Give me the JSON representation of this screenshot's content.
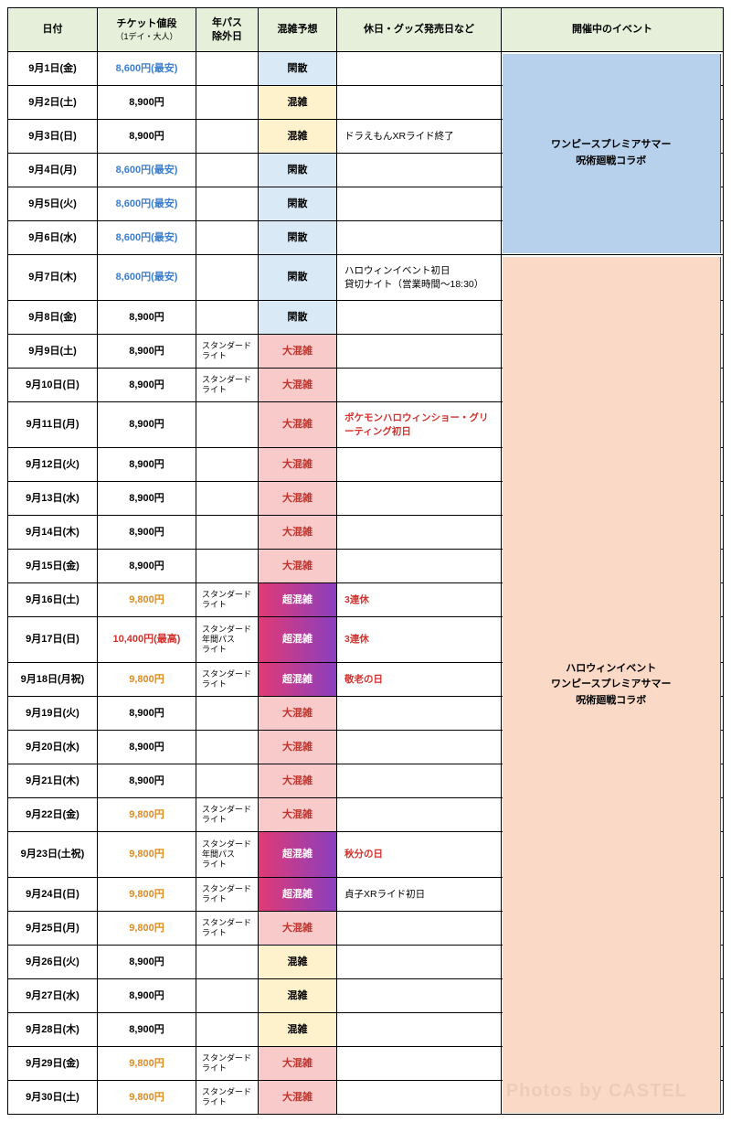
{
  "headers": {
    "date": "日付",
    "price": "チケット値段",
    "price_sub": "（1デイ・大人）",
    "pass": "年パス\n除外日",
    "crowd": "混雑予想",
    "note": "休日・グッズ発売日など",
    "event": "開催中のイベント"
  },
  "crowd_labels": {
    "kansan": "閑散",
    "konzatsu": "混雑",
    "daikonzatsu": "大混雑",
    "choukonzatsu": "超混雑"
  },
  "crowd_colors": {
    "kansan": "c-blue",
    "konzatsu": "c-yellow",
    "daikonzatsu": "c-pink",
    "choukonzatsu": "c-red"
  },
  "price_colors": {
    "lowest": "p-blue",
    "normal": "",
    "high": "p-orange",
    "highest": "p-red"
  },
  "events": [
    {
      "label": "ワンピースプレミアサマー\n呪術廻戦コラボ",
      "class": "ev1",
      "row_start": 0,
      "row_end": 6
    },
    {
      "label": "ハロウィンイベント\nワンピースプレミアサマー\n呪術廻戦コラボ",
      "class": "ev2",
      "row_start": 6,
      "row_end": 30
    }
  ],
  "rows": [
    {
      "date": "9月1日(金)",
      "price": "8,600円(最安)",
      "price_c": "lowest",
      "pass": "",
      "crowd": "kansan",
      "note": "",
      "note_c": ""
    },
    {
      "date": "9月2日(土)",
      "price": "8,900円",
      "price_c": "normal",
      "pass": "",
      "crowd": "konzatsu",
      "note": "",
      "note_c": ""
    },
    {
      "date": "9月3日(日)",
      "price": "8,900円",
      "price_c": "normal",
      "pass": "",
      "crowd": "konzatsu",
      "note": "ドラえもんXRライド終了",
      "note_c": ""
    },
    {
      "date": "9月4日(月)",
      "price": "8,600円(最安)",
      "price_c": "lowest",
      "pass": "",
      "crowd": "kansan",
      "note": "",
      "note_c": ""
    },
    {
      "date": "9月5日(火)",
      "price": "8,600円(最安)",
      "price_c": "lowest",
      "pass": "",
      "crowd": "kansan",
      "note": "",
      "note_c": ""
    },
    {
      "date": "9月6日(水)",
      "price": "8,600円(最安)",
      "price_c": "lowest",
      "pass": "",
      "crowd": "kansan",
      "note": "",
      "note_c": ""
    },
    {
      "date": "9月7日(木)",
      "price": "8,600円(最安)",
      "price_c": "lowest",
      "pass": "",
      "crowd": "kansan",
      "note": "ハロウィンイベント初日\n貸切ナイト（営業時間〜18:30）",
      "note_c": "",
      "tall": true
    },
    {
      "date": "9月8日(金)",
      "price": "8,900円",
      "price_c": "normal",
      "pass": "",
      "crowd": "kansan",
      "note": "",
      "note_c": ""
    },
    {
      "date": "9月9日(土)",
      "price": "8,900円",
      "price_c": "normal",
      "pass": "スタンダード\nライト",
      "crowd": "daikonzatsu",
      "note": "",
      "note_c": ""
    },
    {
      "date": "9月10日(日)",
      "price": "8,900円",
      "price_c": "normal",
      "pass": "スタンダード\nライト",
      "crowd": "daikonzatsu",
      "note": "",
      "note_c": ""
    },
    {
      "date": "9月11日(月)",
      "price": "8,900円",
      "price_c": "normal",
      "pass": "",
      "crowd": "daikonzatsu",
      "note": "ポケモンハロウィンショー・グリーティング初日",
      "note_c": "n-red",
      "tall": true
    },
    {
      "date": "9月12日(火)",
      "price": "8,900円",
      "price_c": "normal",
      "pass": "",
      "crowd": "daikonzatsu",
      "note": "",
      "note_c": ""
    },
    {
      "date": "9月13日(水)",
      "price": "8,900円",
      "price_c": "normal",
      "pass": "",
      "crowd": "daikonzatsu",
      "note": "",
      "note_c": ""
    },
    {
      "date": "9月14日(木)",
      "price": "8,900円",
      "price_c": "normal",
      "pass": "",
      "crowd": "daikonzatsu",
      "note": "",
      "note_c": ""
    },
    {
      "date": "9月15日(金)",
      "price": "8,900円",
      "price_c": "normal",
      "pass": "",
      "crowd": "daikonzatsu",
      "note": "",
      "note_c": ""
    },
    {
      "date": "9月16日(土)",
      "price": "9,800円",
      "price_c": "high",
      "pass": "スタンダード\nライト",
      "crowd": "choukonzatsu",
      "note": "3連休",
      "note_c": "n-red"
    },
    {
      "date": "9月17日(日)",
      "price": "10,400円(最高)",
      "price_c": "highest",
      "pass": "スタンダード\n年間パス\nライト",
      "crowd": "choukonzatsu",
      "note": "3連休",
      "note_c": "n-red",
      "tall": true
    },
    {
      "date": "9月18日(月祝)",
      "price": "9,800円",
      "price_c": "high",
      "pass": "スタンダード\nライト",
      "crowd": "choukonzatsu",
      "note": "敬老の日",
      "note_c": "n-red"
    },
    {
      "date": "9月19日(火)",
      "price": "8,900円",
      "price_c": "normal",
      "pass": "",
      "crowd": "daikonzatsu",
      "note": "",
      "note_c": ""
    },
    {
      "date": "9月20日(水)",
      "price": "8,900円",
      "price_c": "normal",
      "pass": "",
      "crowd": "daikonzatsu",
      "note": "",
      "note_c": ""
    },
    {
      "date": "9月21日(木)",
      "price": "8,900円",
      "price_c": "normal",
      "pass": "",
      "crowd": "daikonzatsu",
      "note": "",
      "note_c": ""
    },
    {
      "date": "9月22日(金)",
      "price": "9,800円",
      "price_c": "high",
      "pass": "スタンダード\nライト",
      "crowd": "daikonzatsu",
      "note": "",
      "note_c": ""
    },
    {
      "date": "9月23日(土祝)",
      "price": "9,800円",
      "price_c": "high",
      "pass": "スタンダード\n年間パス\nライト",
      "crowd": "choukonzatsu",
      "note": "秋分の日",
      "note_c": "n-red",
      "tall": true
    },
    {
      "date": "9月24日(日)",
      "price": "9,800円",
      "price_c": "high",
      "pass": "スタンダード\nライト",
      "crowd": "choukonzatsu",
      "note": "貞子XRライド初日",
      "note_c": ""
    },
    {
      "date": "9月25日(月)",
      "price": "9,800円",
      "price_c": "high",
      "pass": "スタンダード\nライト",
      "crowd": "daikonzatsu",
      "note": "",
      "note_c": ""
    },
    {
      "date": "9月26日(火)",
      "price": "8,900円",
      "price_c": "normal",
      "pass": "",
      "crowd": "konzatsu",
      "note": "",
      "note_c": ""
    },
    {
      "date": "9月27日(水)",
      "price": "8,900円",
      "price_c": "normal",
      "pass": "",
      "crowd": "konzatsu",
      "note": "",
      "note_c": ""
    },
    {
      "date": "9月28日(木)",
      "price": "8,900円",
      "price_c": "normal",
      "pass": "",
      "crowd": "konzatsu",
      "note": "",
      "note_c": ""
    },
    {
      "date": "9月29日(金)",
      "price": "9,800円",
      "price_c": "high",
      "pass": "スタンダード\nライト",
      "crowd": "daikonzatsu",
      "note": "",
      "note_c": ""
    },
    {
      "date": "9月30日(土)",
      "price": "9,800円",
      "price_c": "high",
      "pass": "スタンダード\nライト",
      "crowd": "daikonzatsu",
      "note": "",
      "note_c": ""
    }
  ],
  "row_height_normal": 37,
  "row_height_tall": 50,
  "watermark": "Photos by CASTEL"
}
